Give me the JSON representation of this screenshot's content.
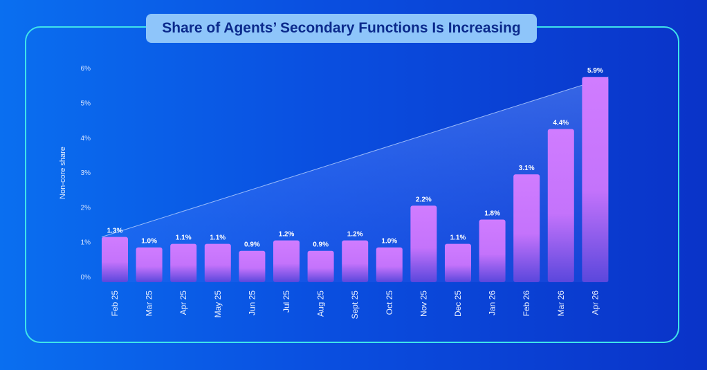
{
  "title": "Share of Agents’ Secondary Functions Is Increasing",
  "colors": {
    "bar_top": "#d07cff",
    "bar_bottom": "#6a45d8",
    "frame": "#3fe3ea",
    "title_bg": "#8ec5fa",
    "title_text": "#0b2a8c"
  },
  "chart_data": {
    "type": "bar",
    "title": "Share of Agents’ Secondary Functions Is Increasing",
    "xlabel": "",
    "ylabel": "Non-core share",
    "ylim": [
      0,
      6
    ],
    "yticks": [
      "0%",
      "1%",
      "2%",
      "3%",
      "4%",
      "5%",
      "6%"
    ],
    "grid": false,
    "categories": [
      "Feb 25",
      "Mar 25",
      "Apr 25",
      "May 25",
      "Jun 25",
      "Jul 25",
      "Aug 25",
      "Sept 25",
      "Oct 25",
      "Nov 25",
      "Dec 25",
      "Jan 26",
      "Feb 26",
      "Mar 26",
      "Apr 26"
    ],
    "values": [
      1.3,
      1.0,
      1.1,
      1.1,
      0.9,
      1.2,
      0.9,
      1.2,
      1.0,
      2.2,
      1.1,
      1.8,
      3.1,
      4.4,
      5.9
    ],
    "labels": [
      "1.3%",
      "1.0%",
      "1.1%",
      "1.1%",
      "0.9%",
      "1.2%",
      "0.9%",
      "1.2%",
      "1.0%",
      "2.2%",
      "1.1%",
      "1.8%",
      "3.1%",
      "4.4%",
      "5.9%"
    ],
    "trend": {
      "from": "Feb 25",
      "to": "Apr 26"
    }
  }
}
